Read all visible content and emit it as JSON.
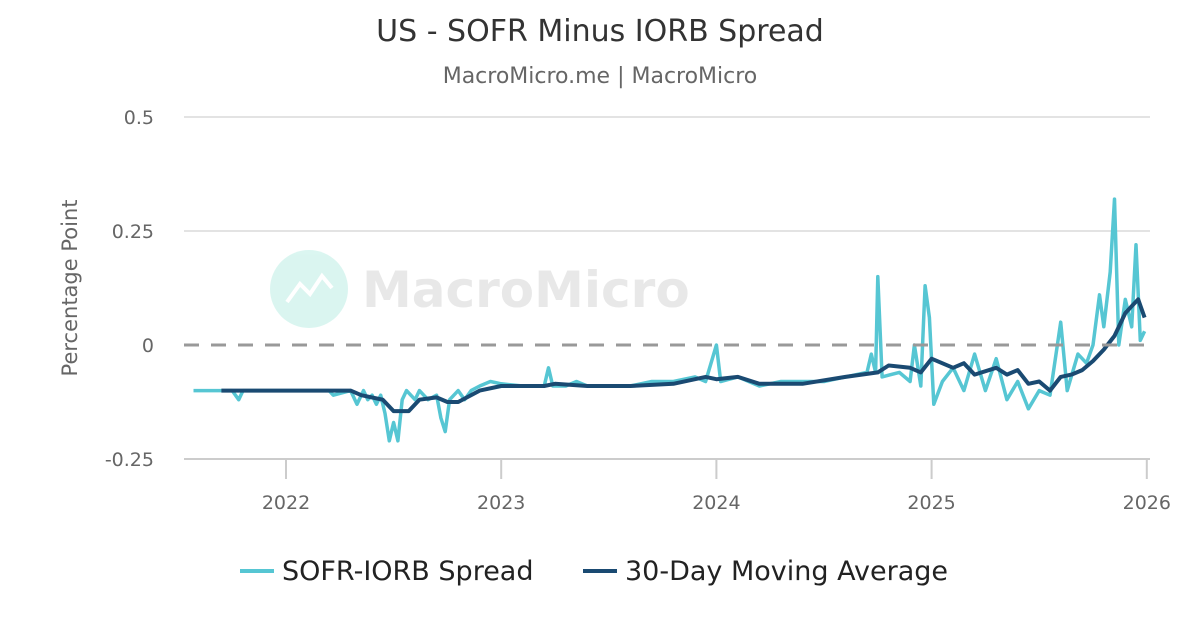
{
  "chart_data": {
    "type": "line",
    "title": "US - SOFR Minus IORB Spread",
    "subtitle": "MacroMicro.me | MacroMicro",
    "watermark": "MacroMicro",
    "ylabel": "Percentage Point",
    "xlabel": "",
    "ylim": [
      -0.25,
      0.5
    ],
    "xlim": [
      2021.53,
      2026.0
    ],
    "yticks": [
      "0.5",
      "0.25",
      "0",
      "-0.25"
    ],
    "ytick_values": [
      0.5,
      0.25,
      0,
      -0.25
    ],
    "xticks": [
      "2022",
      "2023",
      "2024",
      "2025",
      "2026"
    ],
    "xtick_values": [
      2022,
      2023,
      2024,
      2025,
      2026
    ],
    "reference_line": 0,
    "legend_position": "bottom",
    "series": [
      {
        "name": "SOFR-IORB Spread",
        "color": "#56c6d3",
        "x": [
          2021.57,
          2021.7,
          2021.75,
          2021.78,
          2021.8,
          2022.0,
          2022.2,
          2022.22,
          2022.3,
          2022.33,
          2022.36,
          2022.38,
          2022.4,
          2022.42,
          2022.44,
          2022.46,
          2022.48,
          2022.5,
          2022.52,
          2022.54,
          2022.56,
          2022.6,
          2022.62,
          2022.66,
          2022.7,
          2022.72,
          2022.74,
          2022.76,
          2022.8,
          2022.83,
          2022.86,
          2022.9,
          2022.95,
          2023.0,
          2023.1,
          2023.2,
          2023.22,
          2023.24,
          2023.3,
          2023.35,
          2023.4,
          2023.5,
          2023.6,
          2023.7,
          2023.8,
          2023.9,
          2023.95,
          2024.0,
          2024.02,
          2024.1,
          2024.2,
          2024.3,
          2024.4,
          2024.5,
          2024.6,
          2024.7,
          2024.72,
          2024.74,
          2024.75,
          2024.77,
          2024.85,
          2024.9,
          2024.92,
          2024.95,
          2024.97,
          2024.99,
          2025.01,
          2025.05,
          2025.1,
          2025.15,
          2025.2,
          2025.25,
          2025.3,
          2025.35,
          2025.4,
          2025.45,
          2025.5,
          2025.55,
          2025.6,
          2025.63,
          2025.68,
          2025.72,
          2025.75,
          2025.78,
          2025.8,
          2025.83,
          2025.85,
          2025.87,
          2025.9,
          2025.93,
          2025.95,
          2025.97,
          2025.99
        ],
        "values": [
          -0.1,
          -0.1,
          -0.1,
          -0.12,
          -0.1,
          -0.1,
          -0.1,
          -0.11,
          -0.1,
          -0.13,
          -0.1,
          -0.12,
          -0.11,
          -0.13,
          -0.11,
          -0.15,
          -0.21,
          -0.17,
          -0.21,
          -0.12,
          -0.1,
          -0.12,
          -0.1,
          -0.12,
          -0.11,
          -0.16,
          -0.19,
          -0.12,
          -0.1,
          -0.12,
          -0.1,
          -0.09,
          -0.08,
          -0.085,
          -0.09,
          -0.09,
          -0.05,
          -0.09,
          -0.09,
          -0.08,
          -0.09,
          -0.09,
          -0.09,
          -0.08,
          -0.08,
          -0.07,
          -0.08,
          0.0,
          -0.08,
          -0.07,
          -0.09,
          -0.08,
          -0.08,
          -0.08,
          -0.07,
          -0.06,
          -0.02,
          -0.06,
          0.15,
          -0.07,
          -0.06,
          -0.08,
          0.0,
          -0.09,
          0.13,
          0.06,
          -0.13,
          -0.08,
          -0.05,
          -0.1,
          -0.02,
          -0.1,
          -0.03,
          -0.12,
          -0.08,
          -0.14,
          -0.1,
          -0.11,
          0.05,
          -0.1,
          -0.02,
          -0.04,
          0.0,
          0.11,
          0.04,
          0.16,
          0.32,
          0.0,
          0.1,
          0.04,
          0.22,
          0.01,
          0.03
        ]
      },
      {
        "name": "30-Day Moving Average",
        "color": "#1a4a72",
        "x": [
          2021.7,
          2022.2,
          2022.3,
          2022.35,
          2022.45,
          2022.5,
          2022.57,
          2022.62,
          2022.7,
          2022.75,
          2022.8,
          2022.9,
          2023.0,
          2023.2,
          2023.25,
          2023.4,
          2023.6,
          2023.8,
          2023.95,
          2024.0,
          2024.1,
          2024.2,
          2024.4,
          2024.6,
          2024.75,
          2024.8,
          2024.9,
          2024.95,
          2025.0,
          2025.1,
          2025.15,
          2025.2,
          2025.3,
          2025.35,
          2025.4,
          2025.45,
          2025.5,
          2025.55,
          2025.6,
          2025.65,
          2025.7,
          2025.75,
          2025.8,
          2025.85,
          2025.9,
          2025.93,
          2025.96,
          2025.99
        ],
        "values": [
          -0.1,
          -0.1,
          -0.1,
          -0.11,
          -0.12,
          -0.145,
          -0.145,
          -0.12,
          -0.115,
          -0.125,
          -0.125,
          -0.1,
          -0.09,
          -0.09,
          -0.085,
          -0.09,
          -0.09,
          -0.085,
          -0.07,
          -0.075,
          -0.07,
          -0.085,
          -0.085,
          -0.07,
          -0.06,
          -0.045,
          -0.05,
          -0.06,
          -0.03,
          -0.05,
          -0.04,
          -0.065,
          -0.05,
          -0.065,
          -0.055,
          -0.085,
          -0.08,
          -0.1,
          -0.07,
          -0.065,
          -0.055,
          -0.035,
          -0.01,
          0.02,
          0.07,
          0.085,
          0.1,
          0.06
        ]
      }
    ]
  }
}
